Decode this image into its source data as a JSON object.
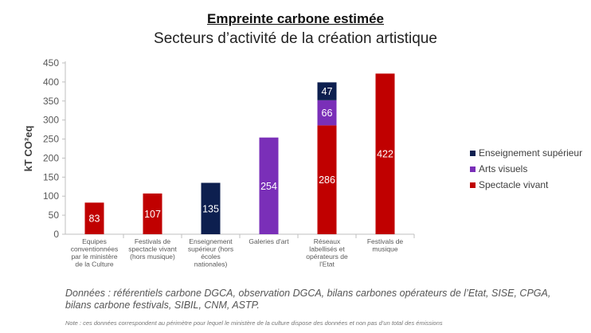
{
  "title": "Empreinte carbone estimée",
  "subtitle": "Secteurs d’activité de la création artistique",
  "source": "Données : référentiels carbone DGCA, observation DGCA, bilans carbones opérateurs de l’Etat, SISE, CPGA, bilans carbone festivals, SIBIL, CNM, ASTP.",
  "note": "Note : ces données correspondent au périmètre pour lequel le ministère de la culture dispose des données et non pas d’un total des émissions",
  "colors": {
    "enseignement": "#0d1f4f",
    "arts": "#7a2fb8",
    "spectacle": "#c00000"
  },
  "chart_data": {
    "type": "bar",
    "stacked": true,
    "ylabel": "kT CO²eq",
    "ylim": [
      0,
      450
    ],
    "yticks": [
      0,
      50,
      100,
      150,
      200,
      250,
      300,
      350,
      400,
      450
    ],
    "grid": false,
    "legend_position": "right",
    "categories": [
      [
        "Equipes",
        "conventionnées",
        "par le ministère",
        "de la Culture"
      ],
      [
        "Festivals de",
        "spectacle vivant",
        "(hors musique)"
      ],
      [
        "Enseignement",
        "supérieur (hors",
        "écoles",
        "nationales)"
      ],
      [
        "Galeries d'art"
      ],
      [
        "Réseaux",
        "labellisés et",
        "opérateurs de",
        "l'Etat"
      ],
      [
        "Festivals de",
        "musique"
      ]
    ],
    "series": [
      {
        "name": "Spectacle vivant",
        "color_key": "spectacle",
        "values": [
          83,
          107,
          0,
          0,
          286,
          422
        ]
      },
      {
        "name": "Arts visuels",
        "color_key": "arts",
        "values": [
          0,
          0,
          0,
          254,
          66,
          0
        ]
      },
      {
        "name": "Enseignement supérieur",
        "color_key": "enseignement",
        "values": [
          0,
          0,
          135,
          0,
          47,
          0
        ]
      }
    ],
    "legend": [
      "Enseignement supérieur",
      "Arts visuels",
      "Spectacle vivant"
    ]
  }
}
